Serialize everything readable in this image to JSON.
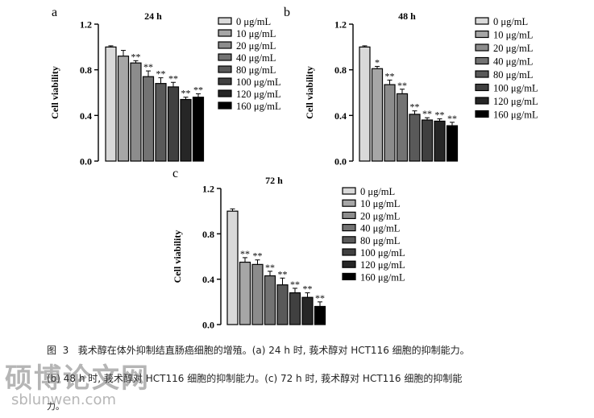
{
  "chart_data": [
    {
      "panel_letter": "a",
      "type": "bar",
      "title": "24 h",
      "ylabel": "Cell viability",
      "xlabel": "",
      "ylim": [
        0,
        1.2
      ],
      "yticks": [
        "0.0",
        "0.4",
        "0.8",
        "1.2"
      ],
      "categories": [
        "0 μg/mL",
        "10 μg/mL",
        "20 μg/mL",
        "40 μg/mL",
        "80 μg/mL",
        "100 μg/mL",
        "120 μg/mL",
        "160 μg/mL"
      ],
      "values": [
        1.0,
        0.92,
        0.86,
        0.74,
        0.68,
        0.65,
        0.54,
        0.56
      ],
      "errors": [
        0.01,
        0.05,
        0.02,
        0.05,
        0.05,
        0.04,
        0.02,
        0.03
      ],
      "significance": [
        "",
        "",
        "**",
        "**",
        "**",
        "**",
        "**",
        "**"
      ],
      "colors": [
        "#d9d9d9",
        "#a6a6a6",
        "#8c8c8c",
        "#737373",
        "#595959",
        "#404040",
        "#262626",
        "#000000"
      ],
      "legend_position": "right"
    },
    {
      "panel_letter": "b",
      "type": "bar",
      "title": "48 h",
      "ylabel": "Cell viability",
      "xlabel": "",
      "ylim": [
        0,
        1.2
      ],
      "yticks": [
        "0.0",
        "0.4",
        "0.8",
        "1.2"
      ],
      "categories": [
        "0 μg/mL",
        "10 μg/mL",
        "20 μg/mL",
        "40 μg/mL",
        "80 μg/mL",
        "100 μg/mL",
        "120 μg/mL",
        "160 μg/mL"
      ],
      "values": [
        1.0,
        0.81,
        0.67,
        0.59,
        0.41,
        0.36,
        0.35,
        0.31
      ],
      "errors": [
        0.01,
        0.02,
        0.04,
        0.04,
        0.03,
        0.02,
        0.02,
        0.03
      ],
      "significance": [
        "",
        "*",
        "**",
        "**",
        "**",
        "**",
        "**",
        "**"
      ],
      "colors": [
        "#d9d9d9",
        "#a6a6a6",
        "#8c8c8c",
        "#737373",
        "#595959",
        "#404040",
        "#262626",
        "#000000"
      ],
      "legend_position": "right"
    },
    {
      "panel_letter": "c",
      "type": "bar",
      "title": "72 h",
      "ylabel": "Cell viability",
      "xlabel": "",
      "ylim": [
        0,
        1.2
      ],
      "yticks": [
        "0.0",
        "0.4",
        "0.8",
        "1.2"
      ],
      "categories": [
        "0 μg/mL",
        "10 μg/mL",
        "20 μg/mL",
        "40 μg/mL",
        "80 μg/mL",
        "100 μg/mL",
        "120 μg/mL",
        "160 μg/mL"
      ],
      "values": [
        1.0,
        0.55,
        0.53,
        0.43,
        0.35,
        0.28,
        0.24,
        0.16
      ],
      "errors": [
        0.02,
        0.04,
        0.04,
        0.04,
        0.06,
        0.04,
        0.04,
        0.04
      ],
      "significance": [
        "",
        "**",
        "**",
        "**",
        "**",
        "**",
        "**",
        "**"
      ],
      "colors": [
        "#d9d9d9",
        "#a6a6a6",
        "#8c8c8c",
        "#737373",
        "#595959",
        "#404040",
        "#262626",
        "#000000"
      ],
      "legend_position": "right"
    }
  ],
  "caption": {
    "line1": "图  3   莪术醇在体外抑制结直肠癌细胞的增殖。(a) 24 h 时, 莪术醇对 HCT116 细胞的抑制能力。",
    "line2": "(b) 48 h 时, 莪术醇对 HCT116 细胞的抑制能力。(c) 72 h 时, 莪术醇对 HCT116 细胞的抑制能",
    "line3": "力。"
  },
  "watermark": {
    "text": "硕博论文网",
    "url": "sblunwen.com"
  }
}
